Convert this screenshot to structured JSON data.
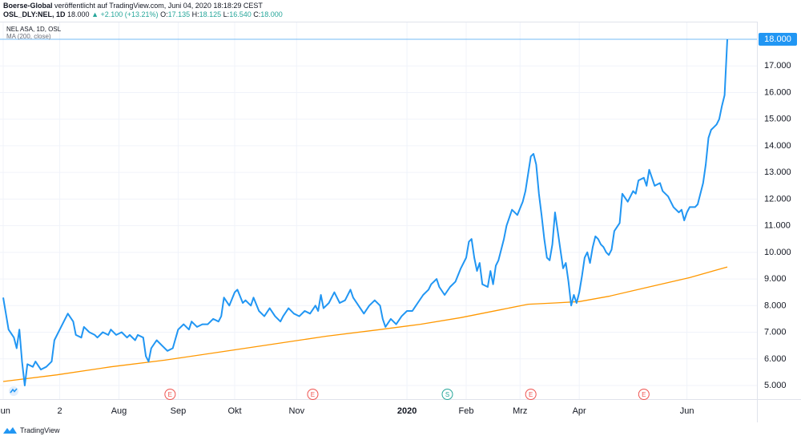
{
  "header": {
    "publisher": "Boerse-Global",
    "published_text": "veröffentlicht auf TradingView.com, Juni 04, 2020 18:18:29 CEST",
    "symbol_line": "OSL_DLY:NEL, 1D",
    "last": "18.000",
    "change": "▲ +2.100 (+13.21%)",
    "o_label": "O:",
    "o": "17.135",
    "h_label": "H:",
    "h": "18.125",
    "l_label": "L:",
    "l": "16.540",
    "c_label": "C:",
    "c": "18.000"
  },
  "legend": {
    "instrument": "NEL ASA, 1D, OSL",
    "indicator": "MA (200, close)"
  },
  "footer": {
    "brand": "TradingView"
  },
  "colors": {
    "price": "#2196f3",
    "ma": "#ff9800",
    "last_line": "#2196f3",
    "badge_bg": "#2196f3",
    "earnings": "#ef5350",
    "split": "#26a69a",
    "grid": "#f0f3fa"
  },
  "chart_data": {
    "type": "line",
    "ylim": [
      4.5,
      18.5
    ],
    "y_ticks": [
      "5.000",
      "6.000",
      "7.000",
      "8.000",
      "9.000",
      "10.000",
      "11.000",
      "12.000",
      "13.000",
      "14.000",
      "15.000",
      "16.000",
      "17.000",
      "18.000"
    ],
    "last_price_label": "18.000",
    "x_labels": [
      {
        "i": 0,
        "label": "Jun"
      },
      {
        "i": 21,
        "label": "2"
      },
      {
        "i": 43,
        "label": "Aug"
      },
      {
        "i": 65,
        "label": "Sep"
      },
      {
        "i": 86,
        "label": "Okt"
      },
      {
        "i": 109,
        "label": "Nov"
      },
      {
        "i": 150,
        "label": "2020"
      },
      {
        "i": 172,
        "label": "Feb"
      },
      {
        "i": 192,
        "label": "Mrz"
      },
      {
        "i": 214,
        "label": "Apr"
      },
      {
        "i": 254,
        "label": "Jun"
      }
    ],
    "x_max": 268,
    "events": [
      {
        "i": 62,
        "label": "E",
        "kind": "earnings"
      },
      {
        "i": 115,
        "label": "E",
        "kind": "earnings"
      },
      {
        "i": 165,
        "label": "S",
        "kind": "split"
      },
      {
        "i": 196,
        "label": "E",
        "kind": "earnings"
      },
      {
        "i": 238,
        "label": "E",
        "kind": "earnings"
      }
    ],
    "series": [
      {
        "key": "price",
        "points": [
          [
            0,
            8.3
          ],
          [
            2,
            7.1
          ],
          [
            4,
            6.8
          ],
          [
            5,
            6.4
          ],
          [
            6,
            7.1
          ],
          [
            7,
            5.9
          ],
          [
            8,
            5.0
          ],
          [
            9,
            5.8
          ],
          [
            11,
            5.7
          ],
          [
            12,
            5.9
          ],
          [
            14,
            5.6
          ],
          [
            16,
            5.7
          ],
          [
            18,
            5.9
          ],
          [
            19,
            6.7
          ],
          [
            21,
            7.1
          ],
          [
            23,
            7.5
          ],
          [
            24,
            7.7
          ],
          [
            26,
            7.4
          ],
          [
            27,
            6.9
          ],
          [
            29,
            6.8
          ],
          [
            30,
            7.2
          ],
          [
            32,
            7.0
          ],
          [
            34,
            6.9
          ],
          [
            35,
            6.8
          ],
          [
            37,
            7.0
          ],
          [
            39,
            6.9
          ],
          [
            40,
            7.1
          ],
          [
            42,
            6.9
          ],
          [
            44,
            7.0
          ],
          [
            46,
            6.8
          ],
          [
            47,
            6.9
          ],
          [
            49,
            6.7
          ],
          [
            50,
            6.9
          ],
          [
            52,
            6.8
          ],
          [
            53,
            6.1
          ],
          [
            54,
            5.9
          ],
          [
            55,
            6.4
          ],
          [
            57,
            6.7
          ],
          [
            59,
            6.5
          ],
          [
            61,
            6.3
          ],
          [
            63,
            6.4
          ],
          [
            65,
            7.1
          ],
          [
            67,
            7.3
          ],
          [
            69,
            7.1
          ],
          [
            70,
            7.4
          ],
          [
            72,
            7.2
          ],
          [
            74,
            7.3
          ],
          [
            76,
            7.3
          ],
          [
            78,
            7.5
          ],
          [
            80,
            7.4
          ],
          [
            81,
            7.6
          ],
          [
            82,
            8.3
          ],
          [
            84,
            8.0
          ],
          [
            86,
            8.5
          ],
          [
            87,
            8.6
          ],
          [
            89,
            8.1
          ],
          [
            90,
            8.2
          ],
          [
            92,
            8.0
          ],
          [
            93,
            8.3
          ],
          [
            95,
            7.8
          ],
          [
            97,
            7.6
          ],
          [
            99,
            7.9
          ],
          [
            101,
            7.6
          ],
          [
            103,
            7.4
          ],
          [
            104,
            7.6
          ],
          [
            106,
            7.9
          ],
          [
            108,
            7.7
          ],
          [
            110,
            7.6
          ],
          [
            112,
            7.8
          ],
          [
            114,
            7.7
          ],
          [
            116,
            8.0
          ],
          [
            117,
            7.8
          ],
          [
            118,
            8.4
          ],
          [
            119,
            7.9
          ],
          [
            121,
            8.1
          ],
          [
            123,
            8.5
          ],
          [
            125,
            8.1
          ],
          [
            127,
            8.2
          ],
          [
            129,
            8.6
          ],
          [
            130,
            8.3
          ],
          [
            132,
            8.0
          ],
          [
            134,
            7.7
          ],
          [
            136,
            8.0
          ],
          [
            138,
            8.2
          ],
          [
            140,
            8.0
          ],
          [
            141,
            7.5
          ],
          [
            142,
            7.2
          ],
          [
            144,
            7.5
          ],
          [
            146,
            7.3
          ],
          [
            148,
            7.6
          ],
          [
            150,
            7.8
          ],
          [
            152,
            7.8
          ],
          [
            154,
            8.1
          ],
          [
            156,
            8.4
          ],
          [
            158,
            8.6
          ],
          [
            159,
            8.8
          ],
          [
            161,
            9.0
          ],
          [
            162,
            8.7
          ],
          [
            164,
            8.4
          ],
          [
            166,
            8.7
          ],
          [
            168,
            8.9
          ],
          [
            170,
            9.4
          ],
          [
            172,
            9.8
          ],
          [
            173,
            10.4
          ],
          [
            174,
            10.5
          ],
          [
            175,
            9.8
          ],
          [
            176,
            9.3
          ],
          [
            177,
            9.6
          ],
          [
            178,
            8.8
          ],
          [
            180,
            8.7
          ],
          [
            181,
            9.3
          ],
          [
            182,
            8.8
          ],
          [
            183,
            9.5
          ],
          [
            184,
            9.7
          ],
          [
            186,
            10.5
          ],
          [
            187,
            11.0
          ],
          [
            189,
            11.6
          ],
          [
            191,
            11.4
          ],
          [
            193,
            11.9
          ],
          [
            194,
            12.3
          ],
          [
            196,
            13.6
          ],
          [
            197,
            13.7
          ],
          [
            198,
            13.3
          ],
          [
            199,
            12.2
          ],
          [
            200,
            11.4
          ],
          [
            201,
            10.5
          ],
          [
            202,
            9.8
          ],
          [
            203,
            9.7
          ],
          [
            204,
            10.3
          ],
          [
            205,
            11.5
          ],
          [
            206,
            10.8
          ],
          [
            207,
            10.1
          ],
          [
            208,
            9.4
          ],
          [
            209,
            9.6
          ],
          [
            210,
            8.9
          ],
          [
            211,
            8.0
          ],
          [
            212,
            8.4
          ],
          [
            213,
            8.1
          ],
          [
            214,
            8.5
          ],
          [
            215,
            9.1
          ],
          [
            216,
            9.8
          ],
          [
            217,
            10.0
          ],
          [
            218,
            9.6
          ],
          [
            219,
            10.2
          ],
          [
            220,
            10.6
          ],
          [
            221,
            10.5
          ],
          [
            222,
            10.3
          ],
          [
            223,
            10.2
          ],
          [
            224,
            10.0
          ],
          [
            225,
            9.9
          ],
          [
            226,
            10.1
          ],
          [
            227,
            10.8
          ],
          [
            229,
            11.1
          ],
          [
            230,
            12.2
          ],
          [
            232,
            11.9
          ],
          [
            234,
            12.3
          ],
          [
            235,
            12.2
          ],
          [
            236,
            12.7
          ],
          [
            238,
            12.8
          ],
          [
            239,
            12.5
          ],
          [
            240,
            13.1
          ],
          [
            241,
            12.8
          ],
          [
            242,
            12.5
          ],
          [
            244,
            12.6
          ],
          [
            245,
            12.3
          ],
          [
            247,
            12.1
          ],
          [
            248,
            11.9
          ],
          [
            249,
            11.7
          ],
          [
            251,
            11.5
          ],
          [
            252,
            11.6
          ],
          [
            253,
            11.2
          ],
          [
            254,
            11.5
          ],
          [
            255,
            11.7
          ],
          [
            257,
            11.7
          ],
          [
            258,
            11.8
          ],
          [
            260,
            12.6
          ],
          [
            261,
            13.3
          ],
          [
            262,
            14.3
          ],
          [
            263,
            14.6
          ],
          [
            264,
            14.7
          ],
          [
            265,
            14.8
          ],
          [
            266,
            15.0
          ],
          [
            267,
            15.5
          ],
          [
            268,
            15.9
          ],
          [
            269,
            18.0
          ]
        ]
      },
      {
        "key": "ma",
        "points": [
          [
            0,
            5.15
          ],
          [
            20,
            5.4
          ],
          [
            40,
            5.7
          ],
          [
            60,
            5.95
          ],
          [
            80,
            6.25
          ],
          [
            100,
            6.55
          ],
          [
            120,
            6.85
          ],
          [
            140,
            7.1
          ],
          [
            155,
            7.3
          ],
          [
            170,
            7.55
          ],
          [
            185,
            7.85
          ],
          [
            195,
            8.05
          ],
          [
            205,
            8.1
          ],
          [
            214,
            8.15
          ],
          [
            225,
            8.35
          ],
          [
            240,
            8.7
          ],
          [
            255,
            9.05
          ],
          [
            269,
            9.45
          ]
        ]
      }
    ]
  }
}
